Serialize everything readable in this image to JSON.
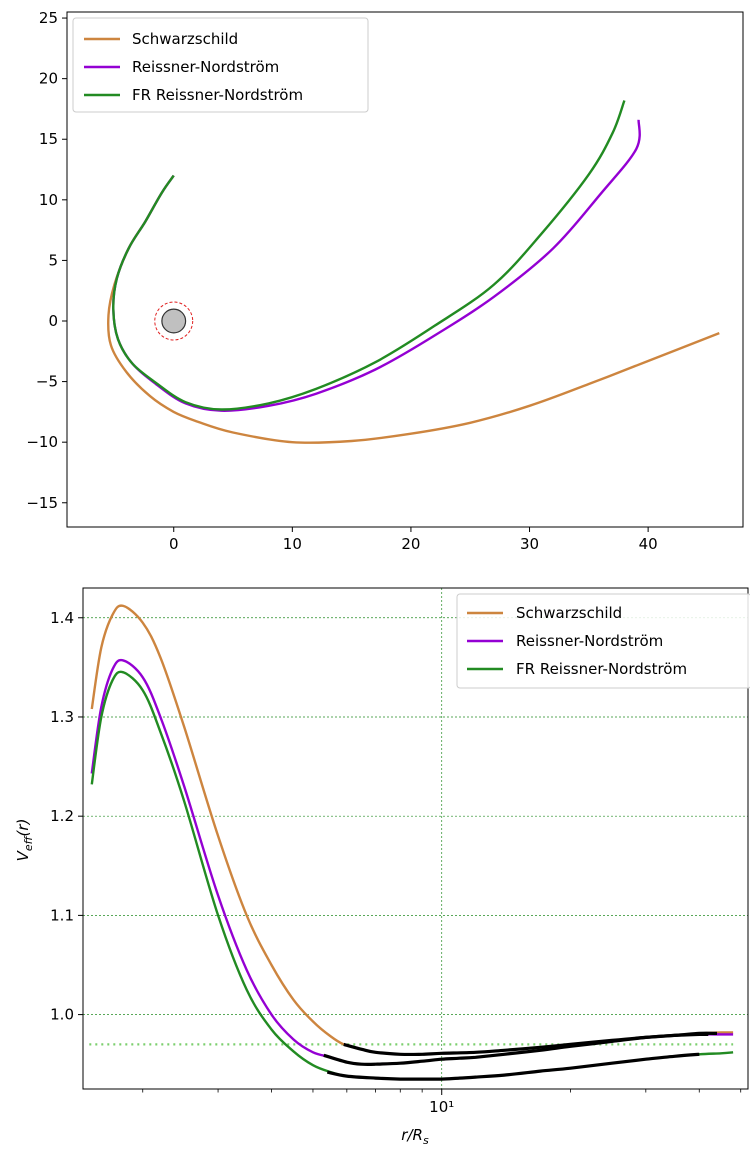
{
  "chart_data": [
    {
      "type": "line",
      "title": "",
      "xlabel": "",
      "ylabel": "",
      "xlim": [
        -9,
        48
      ],
      "ylim": [
        -17,
        25.5
      ],
      "xticks": [
        0,
        10,
        20,
        30,
        40
      ],
      "xtick_labels": [
        "0",
        "10",
        "20",
        "30",
        "40"
      ],
      "yticks": [
        -15,
        -10,
        -5,
        0,
        5,
        10,
        15,
        20,
        25
      ],
      "ytick_labels": [
        "−15",
        "−10",
        "−5",
        "0",
        "5",
        "10",
        "15",
        "20",
        "25"
      ],
      "legend_position": "upper-left",
      "grid": false,
      "central_body": {
        "x": 0,
        "y": 0,
        "radius": 1.0,
        "horizon_radius": 1.6
      },
      "series": [
        {
          "name": "Schwarzschild",
          "color": "#cd853f",
          "points": [
            [
              0,
              12
            ],
            [
              -1,
              10.6
            ],
            [
              -2.4,
              8.2
            ],
            [
              -3.8,
              6
            ],
            [
              -5,
              3
            ],
            [
              -5.5,
              0.5
            ],
            [
              -5.3,
              -2
            ],
            [
              -4,
              -4.2
            ],
            [
              -2,
              -6.2
            ],
            [
              0,
              -7.5
            ],
            [
              2,
              -8.3
            ],
            [
              5,
              -9.2
            ],
            [
              10,
              -10
            ],
            [
              15,
              -9.9
            ],
            [
              20,
              -9.3
            ],
            [
              25,
              -8.4
            ],
            [
              30,
              -7
            ],
            [
              35,
              -5.2
            ],
            [
              40,
              -3.3
            ],
            [
              46,
              -1
            ]
          ]
        },
        {
          "name": "Reissner-Nordström",
          "color": "#9400d3",
          "points": [
            [
              0,
              12
            ],
            [
              -1,
              10.6
            ],
            [
              -2.4,
              8.2
            ],
            [
              -3.8,
              6
            ],
            [
              -4.8,
              3.5
            ],
            [
              -5.1,
              1
            ],
            [
              -4.7,
              -1.5
            ],
            [
              -3.5,
              -3.5
            ],
            [
              -1.5,
              -5.2
            ],
            [
              1,
              -6.8
            ],
            [
              4,
              -7.4
            ],
            [
              8,
              -7
            ],
            [
              12,
              -6
            ],
            [
              17,
              -4
            ],
            [
              22,
              -1.2
            ],
            [
              27,
              2
            ],
            [
              32,
              6
            ],
            [
              36,
              10.5
            ],
            [
              39,
              14.2
            ],
            [
              39.2,
              16.6
            ]
          ]
        },
        {
          "name": "FR Reissner-Nordström",
          "color": "#228b22",
          "points": [
            [
              0,
              12
            ],
            [
              -1,
              10.6
            ],
            [
              -2.4,
              8.2
            ],
            [
              -3.8,
              6
            ],
            [
              -4.8,
              3.5
            ],
            [
              -5.1,
              1
            ],
            [
              -4.7,
              -1.5
            ],
            [
              -3.5,
              -3.5
            ],
            [
              -1.5,
              -5.1
            ],
            [
              1,
              -6.7
            ],
            [
              4,
              -7.3
            ],
            [
              8,
              -6.8
            ],
            [
              12,
              -5.6
            ],
            [
              17,
              -3.4
            ],
            [
              22,
              -0.4
            ],
            [
              27,
              3
            ],
            [
              31,
              7.2
            ],
            [
              35,
              12.1
            ],
            [
              37,
              15.5
            ],
            [
              38,
              18.2
            ]
          ]
        }
      ]
    },
    {
      "type": "line",
      "title": "",
      "xlabel": "r/R_s",
      "ylabel": "V_eff(r)",
      "xscale": "log",
      "xlim": [
        1.45,
        52
      ],
      "ylim": [
        0.925,
        1.43
      ],
      "xticks": [
        10
      ],
      "xtick_labels": [
        "10¹"
      ],
      "yticks": [
        1.0,
        1.1,
        1.2,
        1.3,
        1.4
      ],
      "ytick_labels": [
        "1.0",
        "1.1",
        "1.2",
        "1.3",
        "1.4"
      ],
      "grid": true,
      "grid_color": "#228b22",
      "legend_position": "upper-right",
      "reference_line": {
        "y": 0.97,
        "x_start": 1.5,
        "x_end": 48,
        "color": "#7ccf6e",
        "style": "dotted"
      },
      "series": [
        {
          "name": "Schwarzschild",
          "color": "#cd853f",
          "x": [
            1.52,
            1.6,
            1.7,
            1.8,
            2.0,
            2.2,
            2.5,
            3.0,
            3.5,
            4.0,
            4.5,
            5.0,
            5.5,
            5.9,
            6.5,
            7.0,
            8.0,
            9.0,
            10.0,
            12.0,
            14.0,
            17.0,
            20.0,
            25.0,
            30.0,
            35.0,
            40.0,
            45.0,
            48.0
          ],
          "y": [
            1.308,
            1.37,
            1.403,
            1.412,
            1.395,
            1.36,
            1.29,
            1.18,
            1.1,
            1.05,
            1.015,
            0.993,
            0.978,
            0.97,
            0.965,
            0.962,
            0.96,
            0.96,
            0.961,
            0.962,
            0.964,
            0.967,
            0.97,
            0.974,
            0.977,
            0.979,
            0.981,
            0.982,
            0.982
          ]
        },
        {
          "name": "Reissner-Nordström",
          "color": "#9400d3",
          "x": [
            1.52,
            1.6,
            1.7,
            1.8,
            2.0,
            2.2,
            2.5,
            3.0,
            3.5,
            4.0,
            4.5,
            5.0,
            5.5,
            6.0,
            6.5,
            7.0,
            8.0,
            9.0,
            10.0,
            11.0,
            12.0,
            14.0,
            17.0,
            20.0,
            25.0,
            30.0,
            35.0,
            40.0,
            45.0,
            48.0
          ],
          "y": [
            1.243,
            1.31,
            1.348,
            1.357,
            1.34,
            1.3,
            1.23,
            1.12,
            1.045,
            1.0,
            0.975,
            0.962,
            0.957,
            0.952,
            0.95,
            0.95,
            0.951,
            0.953,
            0.955,
            0.956,
            0.957,
            0.96,
            0.964,
            0.968,
            0.973,
            0.977,
            0.979,
            0.98,
            0.98,
            0.98
          ]
        },
        {
          "name": "FR Reissner-Nordström",
          "color": "#228b22",
          "x": [
            1.52,
            1.6,
            1.7,
            1.8,
            2.0,
            2.2,
            2.5,
            3.0,
            3.5,
            4.0,
            4.5,
            5.0,
            5.5,
            6.0,
            7.0,
            8.0,
            9.0,
            10.0,
            11.0,
            12.0,
            14.0,
            17.0,
            20.0,
            25.0,
            30.0,
            35.0,
            40.0,
            45.0,
            48.0
          ],
          "y": [
            1.232,
            1.3,
            1.337,
            1.345,
            1.327,
            1.285,
            1.215,
            1.1,
            1.025,
            0.985,
            0.963,
            0.949,
            0.942,
            0.938,
            0.936,
            0.935,
            0.935,
            0.935,
            0.936,
            0.937,
            0.939,
            0.943,
            0.946,
            0.951,
            0.955,
            0.958,
            0.96,
            0.961,
            0.962
          ]
        }
      ],
      "overlay_segments": [
        {
          "color": "#000000",
          "x": [
            5.9,
            6.5,
            7.0,
            8.0,
            9.0,
            10.0,
            12.0,
            14.0,
            17.0,
            20.0,
            25.0,
            30.0,
            35.0,
            40.0,
            44.0
          ],
          "y": [
            0.97,
            0.965,
            0.962,
            0.96,
            0.96,
            0.961,
            0.962,
            0.964,
            0.967,
            0.97,
            0.974,
            0.977,
            0.979,
            0.981,
            0.981
          ]
        },
        {
          "color": "#000000",
          "x": [
            5.3,
            6.0,
            6.5,
            7.0,
            8.0,
            9.0,
            10.0,
            11.0,
            12.0,
            14.0,
            17.0,
            20.0,
            25.0,
            30.0,
            35.0,
            40.0,
            42.0
          ],
          "y": [
            0.959,
            0.952,
            0.95,
            0.95,
            0.951,
            0.953,
            0.955,
            0.956,
            0.957,
            0.96,
            0.964,
            0.968,
            0.973,
            0.977,
            0.979,
            0.98,
            0.98
          ]
        },
        {
          "color": "#000000",
          "x": [
            5.4,
            6.0,
            7.0,
            8.0,
            9.0,
            10.0,
            11.0,
            12.0,
            14.0,
            17.0,
            20.0,
            25.0,
            30.0,
            35.0,
            40.0
          ],
          "y": [
            0.942,
            0.938,
            0.936,
            0.935,
            0.935,
            0.935,
            0.936,
            0.937,
            0.939,
            0.943,
            0.946,
            0.951,
            0.955,
            0.958,
            0.96
          ]
        }
      ]
    }
  ]
}
